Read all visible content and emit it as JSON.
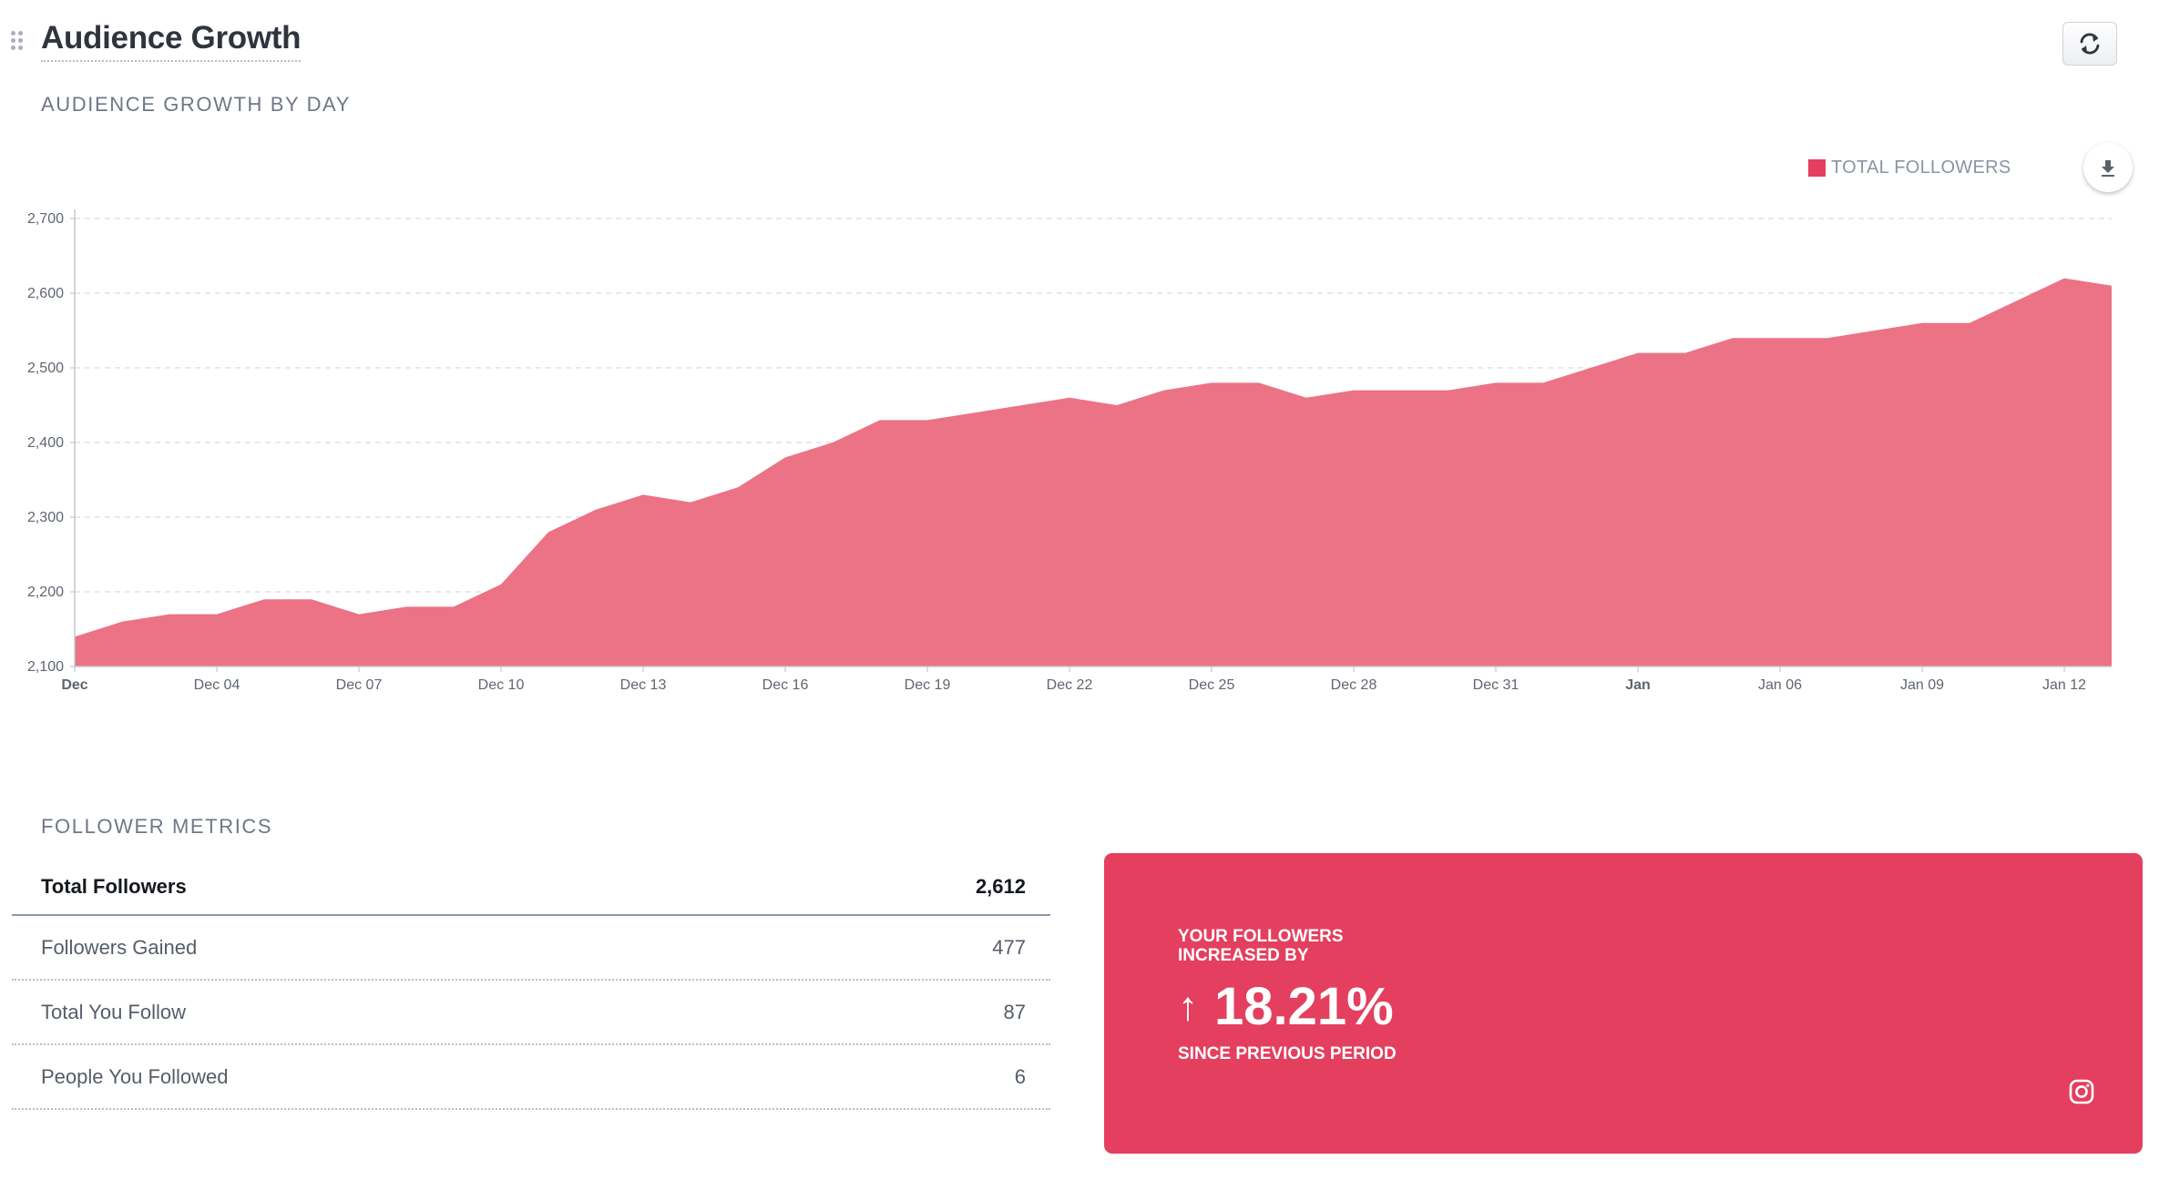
{
  "header": {
    "title": "Audience Growth"
  },
  "sections": {
    "growth_by_day": "AUDIENCE GROWTH BY DAY",
    "follower_metrics": "FOLLOWER METRICS"
  },
  "icons": {
    "drag": "drag-handle-icon",
    "refresh": "refresh-icon",
    "download": "download-icon",
    "instagram": "instagram-icon"
  },
  "colors": {
    "accent": "#e43f5f",
    "area_fill": "#ec7285",
    "legend": "#e43f5f"
  },
  "chart_data": {
    "type": "area",
    "series": [
      {
        "name": "TOTAL FOLLOWERS",
        "color": "#ec7285",
        "values": [
          2140,
          2160,
          2170,
          2170,
          2190,
          2190,
          2170,
          2180,
          2180,
          2210,
          2280,
          2310,
          2330,
          2320,
          2340,
          2380,
          2400,
          2430,
          2430,
          2440,
          2450,
          2460,
          2450,
          2470,
          2480,
          2480,
          2460,
          2470,
          2470,
          2470,
          2480,
          2480,
          2500,
          2520,
          2520,
          2540,
          2540,
          2540,
          2550,
          2560,
          2560,
          2590,
          2620,
          2610
        ]
      }
    ],
    "x_ticks": [
      {
        "label": "Dec",
        "index": 0,
        "bold": true
      },
      {
        "label": "Dec 04",
        "index": 3
      },
      {
        "label": "Dec 07",
        "index": 6
      },
      {
        "label": "Dec 10",
        "index": 9
      },
      {
        "label": "Dec 13",
        "index": 12
      },
      {
        "label": "Dec 16",
        "index": 15
      },
      {
        "label": "Dec 19",
        "index": 18
      },
      {
        "label": "Dec 22",
        "index": 21
      },
      {
        "label": "Dec 25",
        "index": 24
      },
      {
        "label": "Dec 28",
        "index": 27
      },
      {
        "label": "Dec 31",
        "index": 30
      },
      {
        "label": "Jan",
        "index": 33,
        "bold": true
      },
      {
        "label": "Jan 06",
        "index": 36
      },
      {
        "label": "Jan 09",
        "index": 39
      },
      {
        "label": "Jan 12",
        "index": 42
      }
    ],
    "y_ticks": [
      "2,100",
      "2,200",
      "2,300",
      "2,400",
      "2,500",
      "2,600",
      "2,700"
    ],
    "ylim": [
      2100,
      2700
    ],
    "grid": true,
    "legend": "top-right"
  },
  "metrics": {
    "rows": [
      {
        "label": "Total Followers",
        "value": "2,612"
      },
      {
        "label": "Followers Gained",
        "value": "477"
      },
      {
        "label": "Total You Follow",
        "value": "87"
      },
      {
        "label": "People You Followed",
        "value": "6"
      }
    ]
  },
  "growth_card": {
    "heading": "YOUR FOLLOWERS INCREASED BY",
    "arrow": "↑",
    "value": "18.21%",
    "subtext": "SINCE PREVIOUS PERIOD"
  }
}
